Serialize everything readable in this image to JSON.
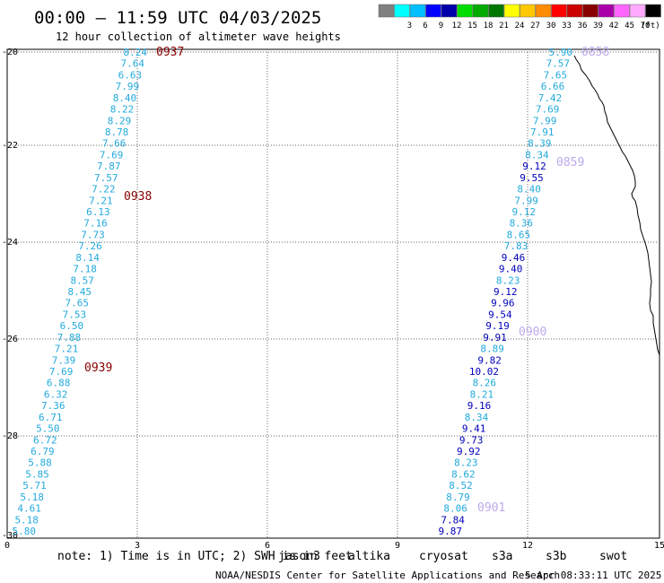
{
  "header": {
    "title": "00:00 — 11:59 UTC 04/03/2025",
    "subtitle": "12 hour collection of altimeter wave heights"
  },
  "legend": {
    "unit": "(ft)",
    "bins": [
      {
        "color": "#808080",
        "label": ""
      },
      {
        "color": "#00ffff",
        "label": "3"
      },
      {
        "color": "#00bfff",
        "label": "6"
      },
      {
        "color": "#0000ff",
        "label": "9"
      },
      {
        "color": "#0000aa",
        "label": "12"
      },
      {
        "color": "#00dd00",
        "label": "15"
      },
      {
        "color": "#00aa00",
        "label": "18"
      },
      {
        "color": "#007700",
        "label": "21"
      },
      {
        "color": "#ffff00",
        "label": "24"
      },
      {
        "color": "#ffc800",
        "label": "27"
      },
      {
        "color": "#ff8c00",
        "label": "30"
      },
      {
        "color": "#ff0000",
        "label": "33"
      },
      {
        "color": "#cc0000",
        "label": "36"
      },
      {
        "color": "#880000",
        "label": "39"
      },
      {
        "color": "#aa00aa",
        "label": "42"
      },
      {
        "color": "#ff66ff",
        "label": "45"
      },
      {
        "color": "#ffaaff",
        "label": "70"
      },
      {
        "color": "#000000",
        "label": ""
      }
    ]
  },
  "axes": {
    "x_ticks": [
      "0",
      "3",
      "6",
      "9",
      "12",
      "15"
    ],
    "y_ticks": [
      "-20",
      "-22",
      "-24",
      "-26",
      "-28",
      "-30"
    ]
  },
  "colors": {
    "cyan": "#22aadd",
    "blue": "#0000bb",
    "time_dark": "#880000",
    "time_light": "#bbaaee",
    "coast": "#000000"
  },
  "track1": {
    "values": [
      "8.24",
      "7.64",
      "6.63",
      "7.99",
      "8.40",
      "8.22",
      "8.29",
      "8.78",
      "7.66",
      "7.69",
      "7.87",
      "7.57",
      "7.22",
      "7.21",
      "6.13",
      "7.16",
      "7.73",
      "7.26",
      "8.14",
      "7.18",
      "8.57",
      "8.45",
      "7.65",
      "7.53",
      "6.50",
      "7.88",
      "7.21",
      "7.39",
      "7.69",
      "6.88",
      "6.32",
      "7.36",
      "6.71",
      "5.50",
      "6.72",
      "6.79",
      "5.88",
      "5.85",
      "5.71",
      "5.18",
      "4.61",
      "5.18",
      "5.80"
    ],
    "times": [
      "0937",
      "0938",
      "0939"
    ]
  },
  "track2": {
    "values": [
      "5.90",
      "7.57",
      "7.65",
      "6.66",
      "7.42",
      "7.69",
      "7.99",
      "7.91",
      "8.39",
      "8.34",
      "9.12",
      "9.55",
      "8.40",
      "7.99",
      "9.12",
      "8.36",
      "8.65",
      "7.83",
      "9.46",
      "9.40",
      "8.23",
      "9.12",
      "9.96",
      "9.54",
      "9.19",
      "9.91",
      "8.89",
      "9.82",
      "10.02",
      "8.26",
      "8.21",
      "9.16",
      "8.34",
      "9.41",
      "9.73",
      "9.92",
      "8.23",
      "8.62",
      "8.52",
      "8.79",
      "8.06",
      "7.84",
      "9.87"
    ],
    "times": [
      "0858",
      "0859",
      "0900",
      "0901"
    ]
  },
  "note": {
    "prefix": "note: 1) Time is in UTC; 2) SWH is in feet",
    "missions": [
      {
        "name": "jason3",
        "color": "#1a7a1a"
      },
      {
        "name": "altika",
        "color": "#ff8c00"
      },
      {
        "name": "cryosat",
        "color": "#ff0000"
      },
      {
        "name": "s3a",
        "color": "#aa0000"
      },
      {
        "name": "s3b",
        "color": "#bbaaee"
      },
      {
        "name": "swot",
        "color": "#ffaaff"
      }
    ]
  },
  "footer": {
    "org": "NOAA/NESDIS Center for Satellite Applications and Research",
    "stamp": "5 Apr 08:33:11 UTC 2025"
  }
}
